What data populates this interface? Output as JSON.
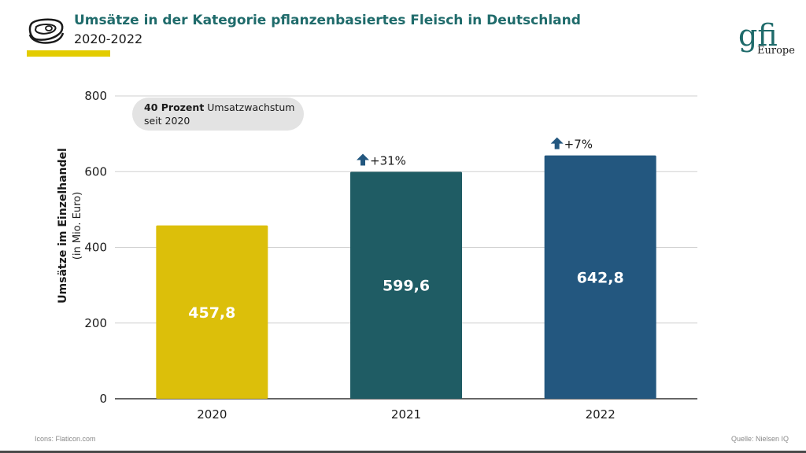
{
  "header": {
    "title": "Umsätze in der Kategorie pflanzenbasiertes Fleisch in Deutschland",
    "subtitle": "2020-2022",
    "icon": "steak-icon",
    "accent_color": "#e3cc00",
    "title_color": "#1f6b6b"
  },
  "logo": {
    "mark": "gfi",
    "text": "Europe"
  },
  "callout": {
    "bold": "40 Prozent",
    "rest": " Umsatzwachstum",
    "line2": "seit 2020"
  },
  "footer": {
    "left": "Icons: Flaticon.com",
    "right": "Quelle: Nielsen IQ"
  },
  "chart_data": {
    "type": "bar",
    "categories": [
      "2020",
      "2021",
      "2022"
    ],
    "values": [
      457.8,
      599.6,
      642.8
    ],
    "value_labels": [
      "457,8",
      "599,6",
      "642,8"
    ],
    "growth_labels": [
      "",
      "+31%",
      "+7%"
    ],
    "colors": [
      "#dcbf0a",
      "#1f5c64",
      "#23577f"
    ],
    "ylabel": "Umsätze im Einzelhandel",
    "ylabel_sub": "(in Mio. Euro)",
    "yticks": [
      0,
      200,
      400,
      600,
      800
    ],
    "ylim": [
      0,
      800
    ],
    "grid": true
  }
}
